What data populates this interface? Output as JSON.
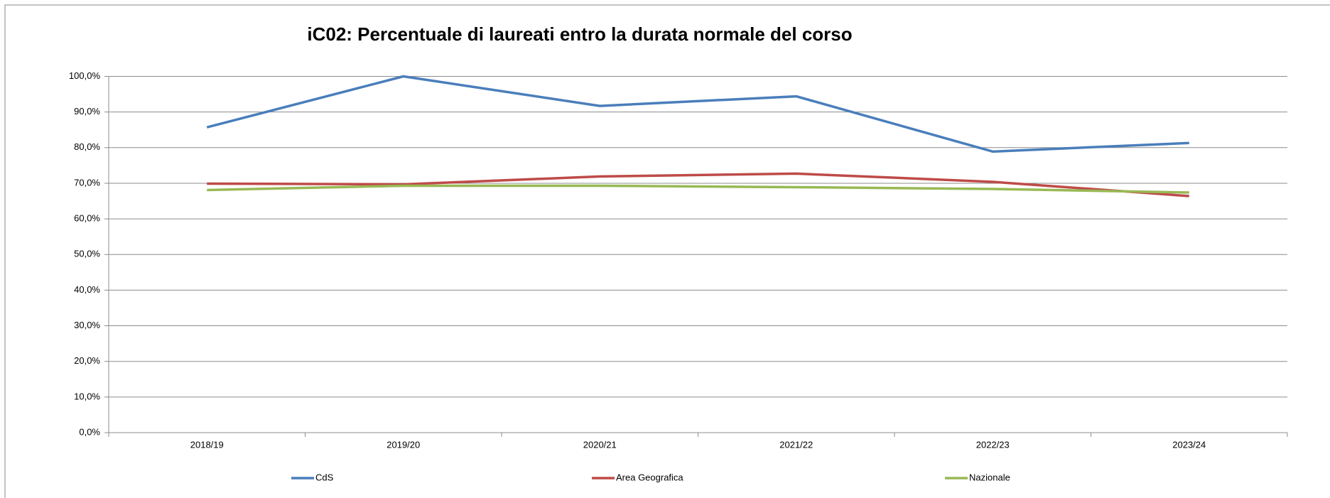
{
  "chart_data": {
    "type": "line",
    "title": "iC02: Percentuale di laureati entro la durata normale del corso",
    "categories": [
      "2018/19",
      "2019/20",
      "2020/21",
      "2021/22",
      "2022/23",
      "2023/24"
    ],
    "series": [
      {
        "name": "CdS",
        "color": "#4a7ebb",
        "values": [
          85.7,
          100,
          91.7,
          94.4,
          78.9,
          81.3
        ]
      },
      {
        "name": "Area Geografica",
        "color": "#be4b48",
        "values": [
          69.9,
          69.7,
          71.9,
          72.7,
          70.4,
          66.4
        ]
      },
      {
        "name": "Nazionale",
        "color": "#98b954",
        "values": [
          68.1,
          69.3,
          69.3,
          68.9,
          68.4,
          67.4
        ]
      }
    ],
    "ylim": [
      0,
      100
    ],
    "yticks": [
      {
        "value": 0,
        "label": "0,0%"
      },
      {
        "value": 10,
        "label": "10,0%"
      },
      {
        "value": 20,
        "label": "20,0%"
      },
      {
        "value": 30,
        "label": "30,0%"
      },
      {
        "value": 40,
        "label": "40,0%"
      },
      {
        "value": 50,
        "label": "50,0%"
      },
      {
        "value": 60,
        "label": "60,0%"
      },
      {
        "value": 70,
        "label": "70,0%"
      },
      {
        "value": 80,
        "label": "80,0%"
      },
      {
        "value": 90,
        "label": "90,0%"
      },
      {
        "value": 100,
        "label": "100,0%"
      }
    ],
    "grid": true,
    "legend": "bottom"
  }
}
